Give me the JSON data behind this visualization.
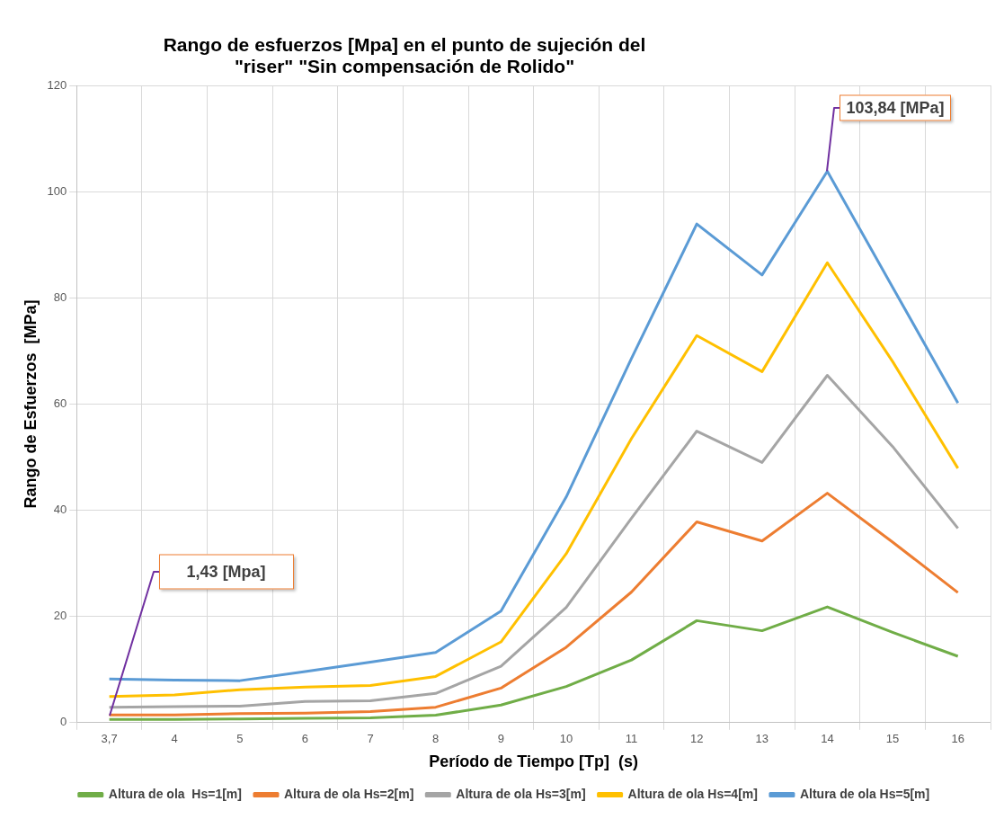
{
  "chart_data": {
    "type": "line",
    "title": "Rango de esfuerzos [Mpa]  en el punto de sujeción del \"riser\" \"Sin compensación de Rolido\"",
    "xlabel": "Período de Tiempo [Tp]  (s)",
    "ylabel": "Rango de Esfuerzos  [MPa]",
    "categories": [
      "3,7",
      "4",
      "5",
      "6",
      "7",
      "8",
      "9",
      "10",
      "11",
      "12",
      "13",
      "14",
      "15",
      "16"
    ],
    "series": [
      {
        "name": "Altura de ola  Hs=1[m]",
        "color": "#70ad47",
        "values": [
          0.6,
          0.6,
          0.7,
          0.8,
          0.9,
          1.4,
          3.3,
          6.8,
          11.8,
          19.2,
          17.3,
          21.8,
          17,
          12.5
        ]
      },
      {
        "name": "Altura de ola Hs=2[m]",
        "color": "#ed7d31",
        "values": [
          1.43,
          1.45,
          1.7,
          1.8,
          2.1,
          2.9,
          6.5,
          14.2,
          24.6,
          37.8,
          34.2,
          43.2,
          34,
          24.5
        ]
      },
      {
        "name": "Altura de ola Hs=3[m]",
        "color": "#a5a5a5",
        "values": [
          2.9,
          3,
          3.1,
          4,
          4.1,
          5.5,
          10.6,
          21.7,
          38.5,
          54.9,
          49,
          65.4,
          52,
          36.6
        ]
      },
      {
        "name": "Altura de ola Hs=4[m]",
        "color": "#ffc000",
        "values": [
          4.9,
          5.2,
          6.2,
          6.7,
          7,
          8.7,
          15.2,
          31.8,
          53.5,
          72.9,
          66.1,
          86.6,
          68,
          47.9
        ]
      },
      {
        "name": "Altura de ola Hs=5[m]",
        "color": "#5b9bd5",
        "values": [
          8.2,
          8,
          7.9,
          9.6,
          11.4,
          13.2,
          21,
          42.5,
          68.6,
          93.9,
          84.3,
          103.84,
          82,
          60.2
        ]
      }
    ],
    "ylim": [
      0,
      120
    ],
    "yticks": [
      0,
      20,
      40,
      60,
      80,
      100,
      120
    ],
    "grid": true,
    "legend": "bottom",
    "marker": "none",
    "line_style": "solid",
    "annotations": [
      "1,43 [Mpa]",
      {
        "text": "103,84 [MPa]",
        "x": "14",
        "y": 103.84
      }
    ]
  }
}
